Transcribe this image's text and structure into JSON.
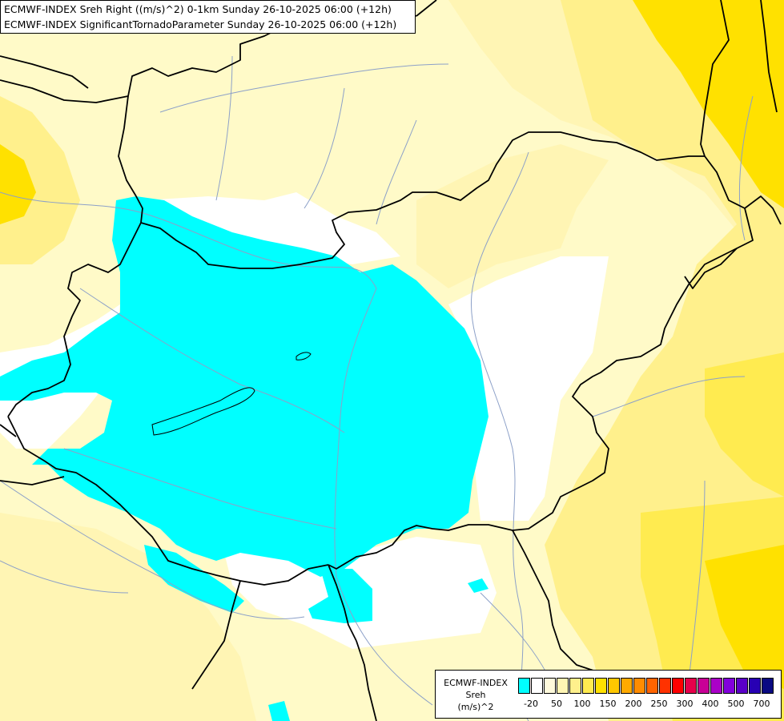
{
  "title": {
    "line1": "ECMWF-INDEX Sreh Right ((m/s)^2) 0-1km Sunday 26-10-2025 06:00 (+12h)",
    "line2": "ECMWF-INDEX SignificantTornadoParameter Sunday 26-10-2025 06:00 (+12h)"
  },
  "legend": {
    "model": "ECMWF-INDEX",
    "variable": "Sreh",
    "unit": "(m/s)^2",
    "colors": [
      "#00ffff",
      "#ffffff",
      "#fffadc",
      "#fff5b4",
      "#fff08c",
      "#ffeb50",
      "#ffe100",
      "#ffc800",
      "#ffaa00",
      "#ff8c00",
      "#ff6400",
      "#ff3200",
      "#ff0000",
      "#e6004b",
      "#c80096",
      "#aa00c8",
      "#8200dc",
      "#5a00c8",
      "#2800b4",
      "#0a0a82"
    ],
    "ticks": [
      "-20",
      "50",
      "100",
      "150",
      "200",
      "250",
      "300",
      "400",
      "500",
      "700"
    ]
  },
  "map": {
    "colors": {
      "background": "#fffac8",
      "pale_yellow": "#fff5b4",
      "yellow": "#fff08c",
      "deep_yellow": "#ffeb50",
      "gold": "#ffe100",
      "white": "#ffffff",
      "cyan": "#00ffff",
      "border": "#000000",
      "river": "#8ca0c8"
    }
  }
}
